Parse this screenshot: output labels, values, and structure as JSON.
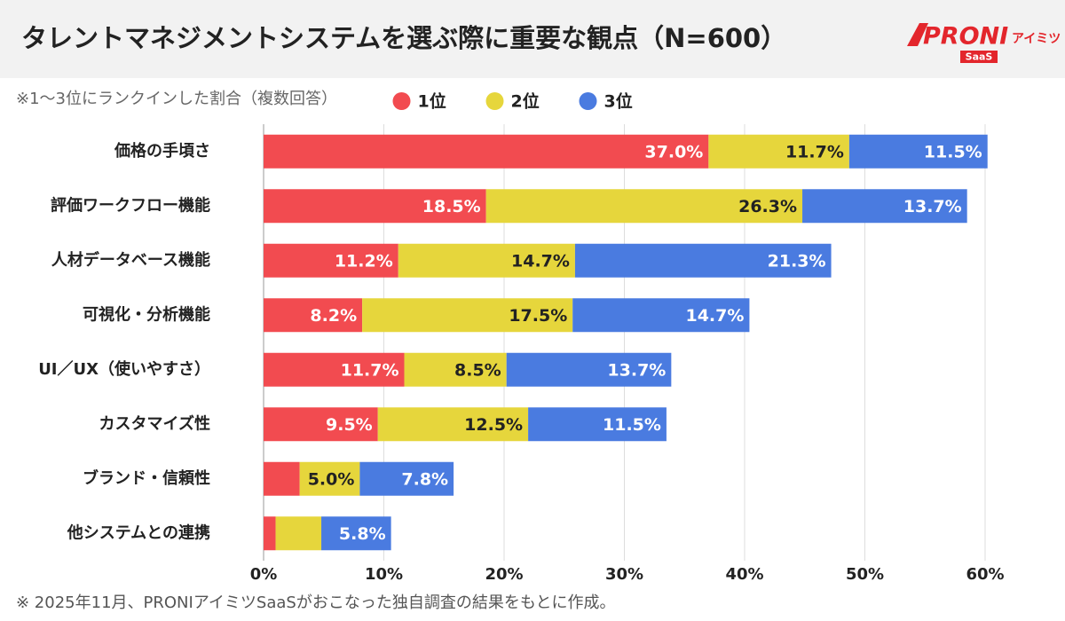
{
  "chart_data": {
    "type": "stacked-bar-horizontal",
    "title": "タレントマネジメントシステムを選ぶ際に重要な観点（N=600）",
    "subtitle": "※1〜3位にランクインした割合（複数回答）",
    "note": "※ 2025年11月、PRONIアイミツSaaSがおこなった独自調査の結果をもとに作成。",
    "categories": [
      "価格の手頃さ",
      "評価ワークフロー機能",
      "人材データベース機能",
      "可視化・分析機能",
      "UI／UX（使いやすさ）",
      "カスタマイズ性",
      "ブランド・信頼性",
      "他システムとの連携"
    ],
    "series": [
      {
        "name": "1位",
        "color": "#f24b50",
        "label_color": "#ffffff",
        "values": [
          37.0,
          18.5,
          11.2,
          8.2,
          11.7,
          9.5,
          3.0,
          1.0
        ],
        "value_labels": [
          "37.0%",
          "18.5%",
          "11.2%",
          "8.2%",
          "11.7%",
          "9.5%",
          null,
          null
        ]
      },
      {
        "name": "2位",
        "color": "#e6d63c",
        "label_color": "#222222",
        "values": [
          11.7,
          26.3,
          14.7,
          17.5,
          8.5,
          12.5,
          5.0,
          3.8
        ],
        "value_labels": [
          "11.7%",
          "26.3%",
          "14.7%",
          "17.5%",
          "8.5%",
          "12.5%",
          "5.0%",
          null
        ]
      },
      {
        "name": "3位",
        "color": "#4a7be0",
        "label_color": "#ffffff",
        "values": [
          11.5,
          13.7,
          21.3,
          14.7,
          13.7,
          11.5,
          7.8,
          5.8
        ],
        "value_labels": [
          "11.5%",
          "13.7%",
          "21.3%",
          "14.7%",
          "13.7%",
          "11.5%",
          "7.8%",
          "5.8%"
        ]
      }
    ],
    "xlim": [
      0,
      60
    ],
    "xticks": [
      {
        "value": 0,
        "label": "0%"
      },
      {
        "value": 10,
        "label": "10%"
      },
      {
        "value": 20,
        "label": "20%"
      },
      {
        "value": 30,
        "label": "30%"
      },
      {
        "value": 40,
        "label": "40%"
      },
      {
        "value": 50,
        "label": "50%"
      },
      {
        "value": 60,
        "label": "60%"
      }
    ],
    "grid": true,
    "legend": "top"
  },
  "logo": {
    "brand": "PRONI",
    "product": "アイミツ",
    "tag": "SaaS"
  }
}
